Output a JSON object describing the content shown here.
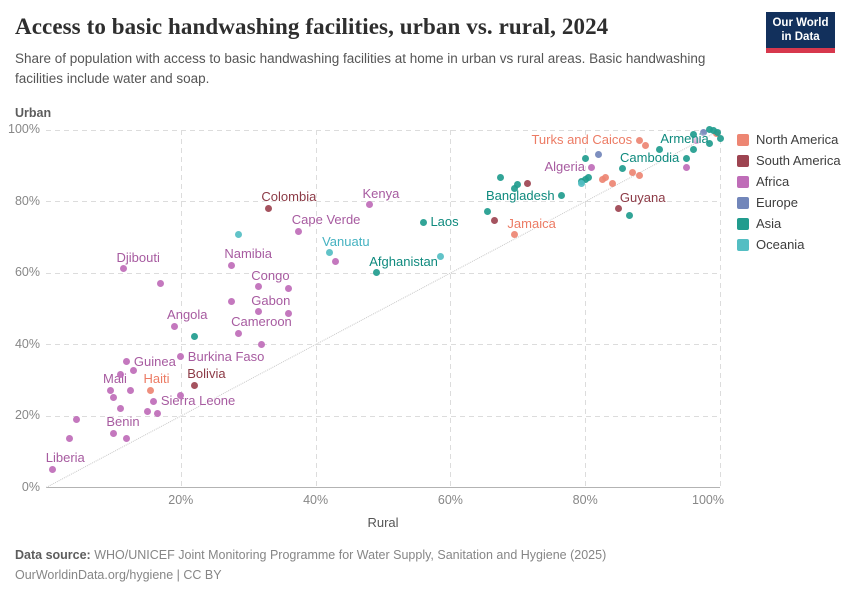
{
  "header": {
    "title": "Access to basic handwashing facilities, urban vs. rural, 2024",
    "subtitle": "Share of population with access to basic handwashing facilities at home in urban vs rural areas. Basic handwashing facilities include water and soap.",
    "logo_line1": "Our World",
    "logo_line2": "in Data",
    "logo_colors": {
      "background": "#12305c",
      "bar": "#d7384d"
    }
  },
  "chart_data": {
    "type": "scatter",
    "title": "Access to basic handwashing facilities, urban vs. rural, 2024",
    "xlabel": "Rural",
    "ylabel": "Urban",
    "xlim": [
      0,
      102
    ],
    "ylim": [
      0,
      102
    ],
    "grid": true,
    "diagonal_parity_line": true,
    "legend_position": "right",
    "x_ticks": [
      {
        "v": 20,
        "label": "20%"
      },
      {
        "v": 40,
        "label": "40%"
      },
      {
        "v": 60,
        "label": "60%"
      },
      {
        "v": 80,
        "label": "80%"
      },
      {
        "v": 100,
        "label": "100%"
      }
    ],
    "y_ticks": [
      {
        "v": 0,
        "label": "0%"
      },
      {
        "v": 20,
        "label": "20%"
      },
      {
        "v": 40,
        "label": "40%"
      },
      {
        "v": 60,
        "label": "60%"
      },
      {
        "v": 80,
        "label": "80%"
      },
      {
        "v": 100,
        "label": "100%"
      }
    ],
    "series": [
      {
        "name": "North America",
        "color": "#ED8673",
        "label_color": "#EC7B64",
        "points": [
          {
            "country": "Haiti",
            "x": 15.5,
            "y": 27,
            "anchor": "above"
          },
          {
            "country": "Jamaica",
            "x": 69.5,
            "y": 70.5,
            "anchor": "above"
          },
          {
            "country": "Turks and Caicos",
            "x": 88,
            "y": 97,
            "anchor": "left"
          },
          {
            "x": 82.5,
            "y": 86
          },
          {
            "x": 83,
            "y": 86.5
          },
          {
            "x": 84,
            "y": 85
          },
          {
            "x": 87,
            "y": 88
          },
          {
            "x": 88,
            "y": 87
          },
          {
            "x": 89,
            "y": 95.5
          },
          {
            "x": 99.5,
            "y": 99
          }
        ]
      },
      {
        "name": "South America",
        "color": "#9D4451",
        "label_color": "#8C3A46",
        "points": [
          {
            "country": "Bolivia",
            "x": 22,
            "y": 28.5,
            "anchor": "above"
          },
          {
            "country": "Colombia",
            "x": 33,
            "y": 78,
            "anchor": "above"
          },
          {
            "country": "Guyana",
            "x": 85,
            "y": 78,
            "anchor": "above-right"
          },
          {
            "x": 66.5,
            "y": 74.5
          },
          {
            "x": 71.5,
            "y": 85
          }
        ]
      },
      {
        "name": "Africa",
        "color": "#BF6DB8",
        "label_color": "#A75BA0",
        "points": [
          {
            "country": "Liberia",
            "x": 1,
            "y": 5,
            "anchor": "above"
          },
          {
            "country": "Benin",
            "x": 10,
            "y": 15,
            "anchor": "above"
          },
          {
            "country": "Sierra Leone",
            "x": 16,
            "y": 24,
            "anchor": "right"
          },
          {
            "country": "Mali",
            "x": 9.5,
            "y": 27,
            "anchor": "above"
          },
          {
            "country": "Guinea",
            "x": 12,
            "y": 35,
            "anchor": "right"
          },
          {
            "country": "Burkina Faso",
            "x": 20,
            "y": 36.5,
            "anchor": "right"
          },
          {
            "country": "Angola",
            "x": 19,
            "y": 45,
            "anchor": "above"
          },
          {
            "country": "Cameroon",
            "x": 28.5,
            "y": 43,
            "anchor": "above"
          },
          {
            "country": "Gabon",
            "x": 31.5,
            "y": 49,
            "anchor": "above"
          },
          {
            "country": "Congo",
            "x": 31.5,
            "y": 56,
            "anchor": "above"
          },
          {
            "country": "Djibouti",
            "x": 11.5,
            "y": 61,
            "anchor": "above"
          },
          {
            "country": "Namibia",
            "x": 27.5,
            "y": 62,
            "anchor": "above"
          },
          {
            "country": "Cape Verde",
            "x": 37.5,
            "y": 71.5,
            "anchor": "above"
          },
          {
            "country": "Kenya",
            "x": 48,
            "y": 79,
            "anchor": "above"
          },
          {
            "country": "Algeria",
            "x": 81,
            "y": 89.5,
            "anchor": "left"
          },
          {
            "x": 3.5,
            "y": 13.5
          },
          {
            "x": 4.5,
            "y": 19
          },
          {
            "x": 10,
            "y": 25
          },
          {
            "x": 11,
            "y": 22
          },
          {
            "x": 12,
            "y": 13.5
          },
          {
            "x": 12.5,
            "y": 27
          },
          {
            "x": 13,
            "y": 32.5
          },
          {
            "x": 11,
            "y": 31.5
          },
          {
            "x": 15,
            "y": 21
          },
          {
            "x": 16.5,
            "y": 20.5
          },
          {
            "x": 20,
            "y": 25.5
          },
          {
            "x": 17,
            "y": 57
          },
          {
            "x": 27.5,
            "y": 52
          },
          {
            "x": 32,
            "y": 40
          },
          {
            "x": 36,
            "y": 48.5
          },
          {
            "x": 36,
            "y": 55.5
          },
          {
            "x": 43,
            "y": 63
          },
          {
            "x": 95,
            "y": 89.5
          },
          {
            "x": 96.5,
            "y": 97
          }
        ]
      },
      {
        "name": "Europe",
        "color": "#7286BA",
        "label_color": "#6A80B6",
        "points": [
          {
            "x": 82,
            "y": 93
          },
          {
            "x": 97.5,
            "y": 99.2
          }
        ]
      },
      {
        "name": "Asia",
        "color": "#219C8E",
        "label_color": "#0F8A7E",
        "points": [
          {
            "country": "Afghanistan",
            "x": 49,
            "y": 60,
            "anchor": "above"
          },
          {
            "country": "Laos",
            "x": 56,
            "y": 74,
            "anchor": "right"
          },
          {
            "country": "Bangladesh",
            "x": 76.5,
            "y": 81.5,
            "anchor": "left"
          },
          {
            "country": "Armenia",
            "x": 91,
            "y": 94.5,
            "anchor": "above-right"
          },
          {
            "country": "Cambodia",
            "x": 95,
            "y": 92,
            "anchor": "left"
          },
          {
            "x": 22,
            "y": 42
          },
          {
            "x": 65.5,
            "y": 77
          },
          {
            "x": 67.5,
            "y": 86.5
          },
          {
            "x": 69.5,
            "y": 83.5
          },
          {
            "x": 70,
            "y": 84.5
          },
          {
            "x": 79.5,
            "y": 85.5
          },
          {
            "x": 80,
            "y": 86
          },
          {
            "x": 80.5,
            "y": 86.5
          },
          {
            "x": 80,
            "y": 92
          },
          {
            "x": 85.5,
            "y": 89
          },
          {
            "x": 86.5,
            "y": 76
          },
          {
            "x": 96,
            "y": 94.5
          },
          {
            "x": 96,
            "y": 98.5
          },
          {
            "x": 98.5,
            "y": 100
          },
          {
            "x": 99,
            "y": 99.8
          },
          {
            "x": 99.7,
            "y": 99.2
          },
          {
            "x": 100,
            "y": 97.5
          },
          {
            "x": 98.5,
            "y": 96
          }
        ]
      },
      {
        "name": "Oceania",
        "color": "#54BEC3",
        "label_color": "#45B2C1",
        "points": [
          {
            "country": "Vanuatu",
            "x": 42,
            "y": 65.5,
            "anchor": "above"
          },
          {
            "x": 28.5,
            "y": 70.5
          },
          {
            "x": 58.5,
            "y": 64.5
          },
          {
            "x": 79.5,
            "y": 84.8
          }
        ]
      }
    ]
  },
  "legend": {
    "items": [
      {
        "label": "North America",
        "color": "#ED8673"
      },
      {
        "label": "South America",
        "color": "#9D4451"
      },
      {
        "label": "Africa",
        "color": "#BF6DB8"
      },
      {
        "label": "Europe",
        "color": "#7286BA"
      },
      {
        "label": "Asia",
        "color": "#219C8E"
      },
      {
        "label": "Oceania",
        "color": "#54BEC3"
      }
    ]
  },
  "footer": {
    "source_label": "Data source:",
    "source_text": "WHO/UNICEF Joint Monitoring Programme for Water Supply, Sanitation and Hygiene (2025)",
    "credit_line": "OurWorldinData.org/hygiene | CC BY"
  }
}
